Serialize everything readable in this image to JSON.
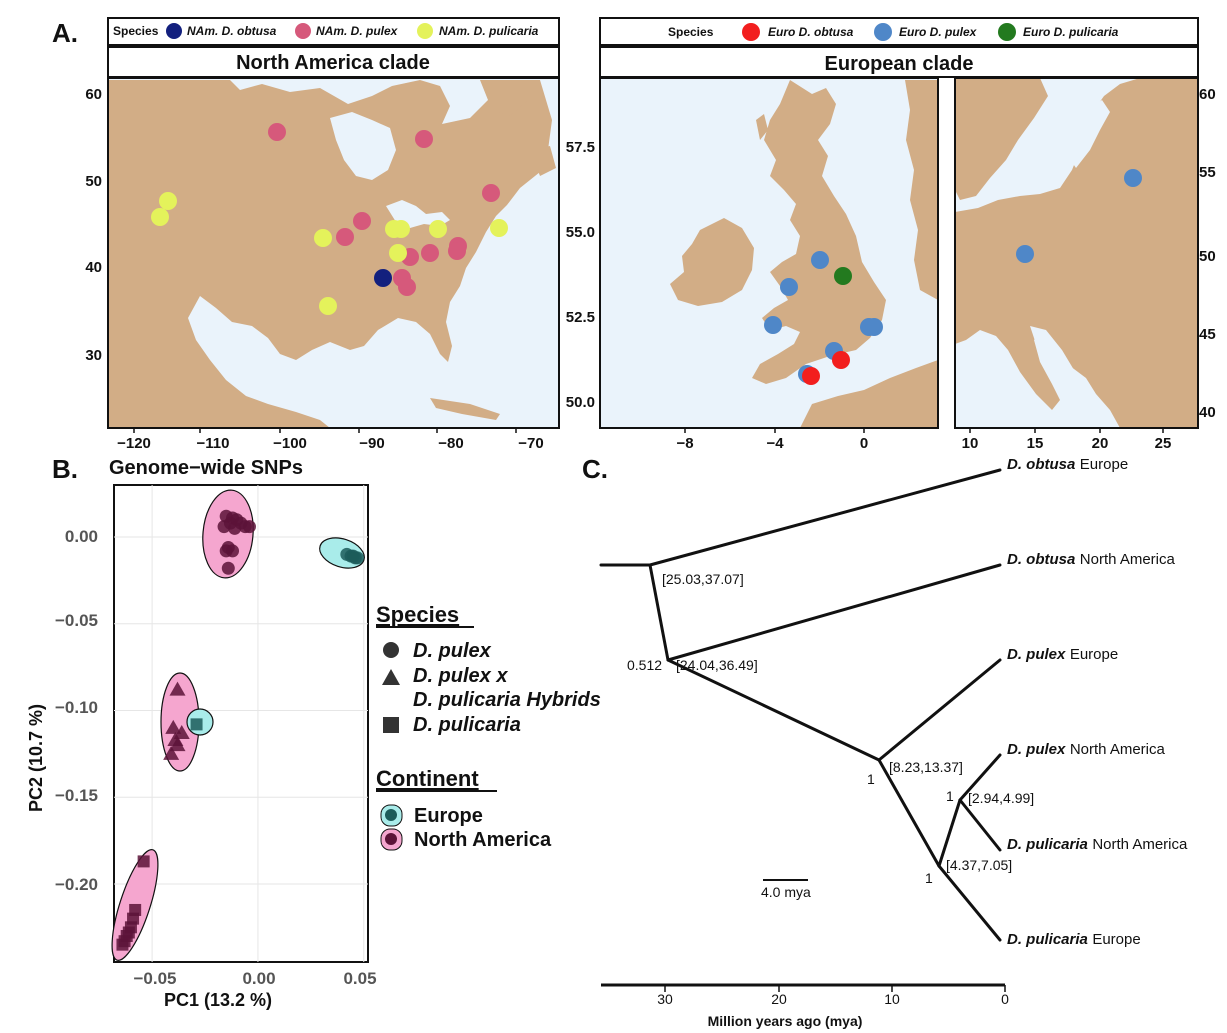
{
  "figure": {
    "panel_a_letter": "A.",
    "panel_b_letter": "B.",
    "panel_c_letter": "C."
  },
  "colors": {
    "land": "#d2ad86",
    "water": "#eaf3fb",
    "nam_obtusa": "#13207e",
    "nam_pulex": "#d6597b",
    "nam_pulicaria": "#e4f25b",
    "euro_obtusa": "#f21e1e",
    "euro_pulex": "#4f87c8",
    "euro_pulicaria": "#237a1f",
    "na_hull": "#f5a6cf",
    "eu_hull": "#a9ecea",
    "na_point": "#5c1338",
    "eu_point": "#1c5c5a"
  },
  "map_na": {
    "legend_title": "Species",
    "legend_items": [
      "NAm. D. obtusa",
      "NAm. D. pulex",
      "NAm. D. pulicaria"
    ],
    "strip_title": "North America clade",
    "x_ticks": [
      "−120",
      "−110",
      "−100",
      "−90",
      "−80",
      "−70"
    ],
    "y_ticks": [
      "60",
      "50",
      "40",
      "30"
    ]
  },
  "map_eu": {
    "legend_title": "Species",
    "legend_items": [
      "Euro D. obtusa",
      "Euro D. pulex",
      "Euro D. pulicaria"
    ],
    "strip_title": "European clade",
    "uk_x_ticks": [
      "−8",
      "−4",
      "0"
    ],
    "uk_y_ticks": [
      "57.5",
      "55.0",
      "52.5",
      "50.0"
    ],
    "ce_x_ticks": [
      "10",
      "15",
      "20",
      "25"
    ],
    "ce_y_ticks": [
      "60",
      "55",
      "50",
      "45",
      "40"
    ]
  },
  "chart_data": {
    "type": "scatter",
    "title": "Genome−wide SNPs",
    "xlabel": "PC1 (13.2 %)",
    "ylabel": "PC2 (10.7 %)",
    "x_ticks": [
      "−0.05",
      "0.00",
      "0.05"
    ],
    "y_ticks": [
      "0.00",
      "−0.05",
      "−0.10",
      "−0.15",
      "−0.20"
    ],
    "xlim": [
      -0.068,
      0.052
    ],
    "ylim": [
      -0.245,
      0.03
    ],
    "series": [
      {
        "name": "D. pulex",
        "continent": "North America",
        "shape": "circle",
        "points": [
          [
            -0.015,
            0.012
          ],
          [
            -0.012,
            0.011
          ],
          [
            -0.01,
            0.01
          ],
          [
            -0.013,
            0.008
          ],
          [
            -0.008,
            0.008
          ],
          [
            -0.006,
            0.006
          ],
          [
            -0.016,
            0.006
          ],
          [
            -0.011,
            0.005
          ],
          [
            -0.004,
            0.006
          ],
          [
            -0.014,
            -0.006
          ],
          [
            -0.015,
            -0.008
          ],
          [
            -0.012,
            -0.008
          ],
          [
            -0.014,
            -0.018
          ]
        ]
      },
      {
        "name": "D. pulex",
        "continent": "Europe",
        "shape": "circle",
        "points": [
          [
            0.042,
            -0.01
          ],
          [
            0.044,
            -0.011
          ],
          [
            0.045,
            -0.011
          ],
          [
            0.046,
            -0.012
          ],
          [
            0.047,
            -0.012
          ]
        ]
      },
      {
        "name": "D. pulex x D. pulicaria Hybrids",
        "continent": "North America",
        "shape": "triangle",
        "points": [
          [
            -0.038,
            -0.088
          ],
          [
            -0.04,
            -0.11
          ],
          [
            -0.036,
            -0.113
          ],
          [
            -0.039,
            -0.117
          ],
          [
            -0.038,
            -0.12
          ],
          [
            -0.041,
            -0.125
          ]
        ]
      },
      {
        "name": "D. pulicaria",
        "continent": "Europe",
        "shape": "square",
        "points": [
          [
            -0.029,
            -0.108
          ]
        ]
      },
      {
        "name": "D. pulicaria",
        "continent": "North America",
        "shape": "square",
        "points": [
          [
            -0.054,
            -0.187
          ],
          [
            -0.058,
            -0.215
          ],
          [
            -0.059,
            -0.22
          ],
          [
            -0.06,
            -0.225
          ],
          [
            -0.061,
            -0.228
          ],
          [
            -0.062,
            -0.23
          ],
          [
            -0.063,
            -0.233
          ],
          [
            -0.064,
            -0.235
          ]
        ]
      }
    ]
  },
  "pca_legend": {
    "species_heading": "Species",
    "species_items": [
      "D. pulex",
      "D. pulex x",
      "D. pulicaria Hybrids",
      "D. pulicaria"
    ],
    "continent_heading": "Continent",
    "continent_items": [
      "Europe",
      "North America"
    ]
  },
  "tree": {
    "tips": [
      {
        "genus": "D. obtusa",
        "region": "Europe"
      },
      {
        "genus": "D. obtusa",
        "region": "North America"
      },
      {
        "genus": "D. pulex",
        "region": "Europe"
      },
      {
        "genus": "D. pulex",
        "region": "North America"
      },
      {
        "genus": "D. pulicaria",
        "region": "North America"
      },
      {
        "genus": "D. pulicaria",
        "region": "Europe"
      }
    ],
    "node_labels": {
      "root_ci": "[25.03,37.07]",
      "n1_ci": "[24.04,36.49]",
      "n1_support": "0.512",
      "n2_ci": "[8.23,13.37]",
      "n2_support": "1",
      "n3_ci": "[4.37,7.05]",
      "n3_support": "1",
      "n4_ci": "[2.94,4.99]",
      "n4_support": "1"
    },
    "scale_bar": "4.0 mya",
    "axis_label": "Million years ago (mya)",
    "axis_ticks": [
      "30",
      "20",
      "10",
      "0"
    ]
  }
}
